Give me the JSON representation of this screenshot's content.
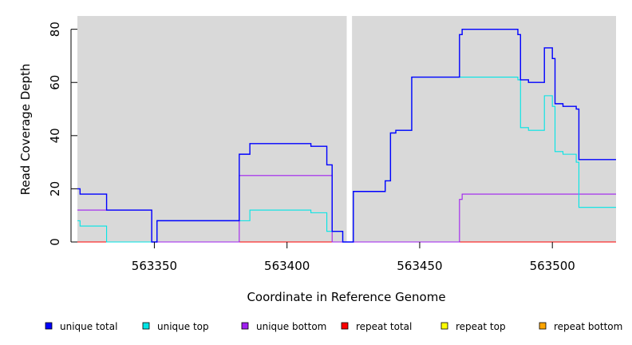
{
  "chart_data": {
    "type": "line",
    "step": true,
    "title": "",
    "xlabel": "Coordinate in Reference Genome",
    "ylabel": "Read Coverage Depth",
    "xlim": [
      563321,
      563524
    ],
    "ylim": [
      0,
      85
    ],
    "x_ticks": [
      563350,
      563400,
      563450,
      563500
    ],
    "y_ticks": [
      0,
      20,
      40,
      60,
      80
    ],
    "gap": [
      563422.5,
      563424.5
    ],
    "background": "#d9d9d9",
    "legend_position": "bottom",
    "series": [
      {
        "name": "unique total",
        "color": "#0000ff",
        "points": [
          [
            563321,
            20
          ],
          [
            563322,
            18
          ],
          [
            563332,
            12
          ],
          [
            563349,
            0
          ],
          [
            563350,
            0
          ],
          [
            563351,
            8
          ],
          [
            563382,
            33
          ],
          [
            563386,
            37
          ],
          [
            563409,
            36
          ],
          [
            563415,
            29
          ],
          [
            563417,
            4
          ],
          [
            563421,
            0
          ],
          [
            563425,
            19
          ],
          [
            563437,
            23
          ],
          [
            563439,
            41
          ],
          [
            563441,
            42
          ],
          [
            563447,
            62
          ],
          [
            563465,
            78
          ],
          [
            563466,
            80
          ],
          [
            563487,
            78
          ],
          [
            563488,
            61
          ],
          [
            563491,
            60
          ],
          [
            563497,
            73
          ],
          [
            563500,
            69
          ],
          [
            563501,
            52
          ],
          [
            563504,
            51
          ],
          [
            563509,
            50
          ],
          [
            563510,
            31
          ],
          [
            563524,
            31
          ]
        ]
      },
      {
        "name": "unique top",
        "color": "#00e5e5",
        "points": [
          [
            563321,
            8
          ],
          [
            563322,
            6
          ],
          [
            563332,
            0
          ],
          [
            563351,
            8
          ],
          [
            563382,
            8
          ],
          [
            563386,
            12
          ],
          [
            563409,
            11
          ],
          [
            563415,
            4
          ],
          [
            563421,
            0
          ],
          [
            563425,
            19
          ],
          [
            563437,
            23
          ],
          [
            563439,
            41
          ],
          [
            563441,
            42
          ],
          [
            563447,
            62
          ],
          [
            563487,
            61
          ],
          [
            563488,
            43
          ],
          [
            563491,
            42
          ],
          [
            563497,
            55
          ],
          [
            563500,
            51
          ],
          [
            563501,
            34
          ],
          [
            563504,
            33
          ],
          [
            563509,
            30
          ],
          [
            563510,
            13
          ],
          [
            563524,
            13
          ]
        ]
      },
      {
        "name": "unique bottom",
        "color": "#a020f0",
        "points": [
          [
            563321,
            12
          ],
          [
            563332,
            12
          ],
          [
            563349,
            0
          ],
          [
            563382,
            25
          ],
          [
            563417,
            0
          ],
          [
            563465,
            16
          ],
          [
            563466,
            18
          ],
          [
            563524,
            18
          ]
        ]
      },
      {
        "name": "repeat total",
        "color": "#ff0000",
        "points": [
          [
            563321,
            0
          ],
          [
            563524,
            0
          ]
        ]
      },
      {
        "name": "repeat top",
        "color": "#ffff00",
        "points": [
          [
            563321,
            0
          ],
          [
            563524,
            0
          ]
        ]
      },
      {
        "name": "repeat bottom",
        "color": "#ffa500",
        "points": [
          [
            563321,
            0
          ],
          [
            563524,
            0
          ]
        ]
      }
    ]
  }
}
